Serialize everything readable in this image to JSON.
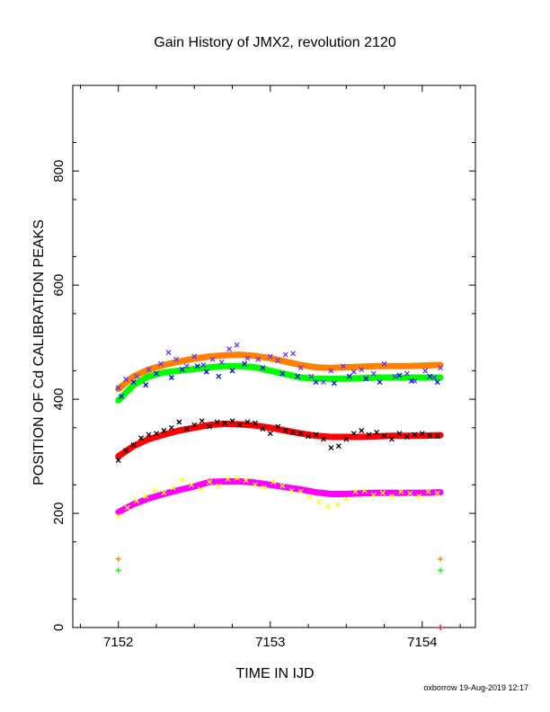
{
  "chart_data": {
    "type": "scatter",
    "title": "Gain History of JMX2, revolution 2120",
    "xlabel": "TIME IN IJD",
    "ylabel": "POSITION OF Cd CALIBRATION PEAKS",
    "xlim": [
      7151.7,
      7154.35
    ],
    "ylim": [
      0,
      950
    ],
    "xticks": [
      7152,
      7153,
      7154
    ],
    "xtick_labels": [
      "7152",
      "7153",
      "7154"
    ],
    "yticks": [
      0,
      200,
      400,
      600,
      800
    ],
    "ytick_labels": [
      "0",
      "200",
      "400",
      "600",
      "800"
    ],
    "grid": false,
    "legend": "none",
    "footer": "oxborrow 19-Aug-2019 12:17",
    "series": [
      {
        "color": "#ff8000",
        "style": "fit",
        "x": [
          7152.0,
          7152.1,
          7152.2,
          7152.3,
          7152.4,
          7152.5,
          7152.6,
          7152.7,
          7152.8,
          7152.9,
          7153.0,
          7153.1,
          7153.2,
          7153.3,
          7153.4,
          7153.5,
          7153.6,
          7153.7,
          7153.8,
          7153.9,
          7154.0,
          7154.12
        ],
        "y": [
          418,
          440,
          452,
          460,
          466,
          471,
          475,
          477,
          478,
          476,
          472,
          466,
          460,
          456,
          455,
          456,
          457,
          458,
          458,
          458,
          459,
          460
        ]
      },
      {
        "color": "#00ff00",
        "style": "fit",
        "x": [
          7152.0,
          7152.1,
          7152.2,
          7152.3,
          7152.4,
          7152.5,
          7152.6,
          7152.7,
          7152.8,
          7152.9,
          7153.0,
          7153.1,
          7153.2,
          7153.3,
          7153.4,
          7153.5,
          7153.6,
          7153.7,
          7153.8,
          7153.9,
          7154.0,
          7154.12
        ],
        "y": [
          398,
          425,
          440,
          447,
          450,
          453,
          456,
          458,
          458,
          456,
          450,
          444,
          438,
          436,
          436,
          436,
          437,
          438,
          438,
          438,
          438,
          438
        ]
      },
      {
        "color": "#ff0000",
        "style": "fit",
        "x": [
          7152.0,
          7152.1,
          7152.2,
          7152.3,
          7152.4,
          7152.5,
          7152.6,
          7152.7,
          7152.8,
          7152.9,
          7153.0,
          7153.1,
          7153.2,
          7153.3,
          7153.4,
          7153.5,
          7153.6,
          7153.7,
          7153.8,
          7153.9,
          7154.0,
          7154.12
        ],
        "y": [
          300,
          318,
          330,
          338,
          345,
          350,
          355,
          357,
          356,
          354,
          350,
          345,
          340,
          336,
          334,
          334,
          334,
          335,
          336,
          336,
          336,
          337
        ]
      },
      {
        "color": "#ff00ff",
        "style": "fit",
        "x": [
          7152.0,
          7152.1,
          7152.2,
          7152.3,
          7152.4,
          7152.5,
          7152.6,
          7152.7,
          7152.8,
          7152.9,
          7153.0,
          7153.1,
          7153.2,
          7153.3,
          7153.4,
          7153.5,
          7153.6,
          7153.7,
          7153.8,
          7153.9,
          7154.0,
          7154.12
        ],
        "y": [
          202,
          216,
          226,
          234,
          241,
          247,
          255,
          256,
          256,
          254,
          250,
          246,
          242,
          237,
          234,
          234,
          235,
          236,
          236,
          236,
          236,
          237
        ]
      },
      {
        "color": "#6a2fff",
        "style": "points",
        "x": [
          7152.0,
          7152.05,
          7152.12,
          7152.2,
          7152.28,
          7152.33,
          7152.38,
          7152.45,
          7152.5,
          7152.56,
          7152.62,
          7152.68,
          7152.73,
          7152.78,
          7152.85,
          7152.92,
          7153.0,
          7153.05,
          7153.1,
          7153.15,
          7153.2,
          7153.27,
          7153.35,
          7153.4,
          7153.48,
          7153.55,
          7153.6,
          7153.68,
          7153.75,
          7153.82,
          7153.9,
          7153.95,
          7154.02,
          7154.08,
          7154.12
        ],
        "y": [
          420,
          435,
          440,
          452,
          462,
          482,
          470,
          458,
          475,
          460,
          470,
          465,
          488,
          495,
          472,
          470,
          475,
          468,
          478,
          480,
          455,
          440,
          430,
          450,
          458,
          448,
          452,
          445,
          462,
          440,
          445,
          432,
          450,
          438,
          455
        ]
      },
      {
        "color": "#0000ff",
        "style": "points",
        "x": [
          7152.02,
          7152.1,
          7152.18,
          7152.25,
          7152.35,
          7152.42,
          7152.52,
          7152.58,
          7152.66,
          7152.75,
          7152.83,
          7152.95,
          7153.08,
          7153.18,
          7153.3,
          7153.42,
          7153.52,
          7153.63,
          7153.72,
          7153.85,
          7153.93,
          7154.05,
          7154.1
        ],
        "y": [
          405,
          430,
          425,
          445,
          438,
          452,
          458,
          448,
          440,
          450,
          462,
          455,
          445,
          440,
          430,
          428,
          440,
          436,
          430,
          442,
          432,
          440,
          430
        ]
      },
      {
        "color": "#000000",
        "style": "points",
        "x": [
          7152.0,
          7152.05,
          7152.1,
          7152.15,
          7152.2,
          7152.25,
          7152.3,
          7152.35,
          7152.4,
          7152.45,
          7152.5,
          7152.55,
          7152.6,
          7152.65,
          7152.7,
          7152.75,
          7152.8,
          7152.85,
          7152.9,
          7152.95,
          7153.0,
          7153.05,
          7153.1,
          7153.15,
          7153.2,
          7153.25,
          7153.3,
          7153.35,
          7153.4,
          7153.45,
          7153.5,
          7153.55,
          7153.6,
          7153.65,
          7153.7,
          7153.75,
          7153.8,
          7153.85,
          7153.9,
          7153.95,
          7154.0,
          7154.05,
          7154.1
        ],
        "y": [
          293,
          310,
          320,
          332,
          338,
          340,
          345,
          350,
          360,
          348,
          355,
          362,
          352,
          360,
          358,
          362,
          355,
          360,
          358,
          348,
          340,
          352,
          345,
          342,
          340,
          335,
          338,
          330,
          315,
          318,
          330,
          340,
          345,
          338,
          342,
          336,
          330,
          340,
          334,
          338,
          340,
          336,
          335
        ]
      },
      {
        "color": "#ffff00",
        "style": "points",
        "x": [
          7152.0,
          7152.06,
          7152.12,
          7152.18,
          7152.24,
          7152.3,
          7152.36,
          7152.42,
          7152.48,
          7152.54,
          7152.6,
          7152.66,
          7152.72,
          7152.78,
          7152.84,
          7152.9,
          7152.96,
          7153.02,
          7153.08,
          7153.14,
          7153.2,
          7153.26,
          7153.32,
          7153.38,
          7153.44,
          7153.5,
          7153.56,
          7153.62,
          7153.68,
          7153.74,
          7153.8,
          7153.86,
          7153.92,
          7153.98,
          7154.04,
          7154.1
        ],
        "y": [
          195,
          210,
          222,
          230,
          240,
          236,
          245,
          258,
          250,
          242,
          255,
          248,
          260,
          262,
          258,
          250,
          245,
          255,
          248,
          240,
          238,
          228,
          220,
          212,
          215,
          225,
          238,
          240,
          232,
          236,
          230,
          238,
          235,
          230,
          238,
          235
        ]
      },
      {
        "color": "#ff8000",
        "style": "plus",
        "x": [
          7152.0,
          7154.12
        ],
        "y": [
          120,
          120
        ]
      },
      {
        "color": "#00ff00",
        "style": "plus",
        "x": [
          7152.0,
          7154.12
        ],
        "y": [
          100,
          100
        ]
      },
      {
        "color": "#ff0000",
        "style": "plus",
        "x": [
          7154.12
        ],
        "y": [
          0
        ]
      }
    ]
  }
}
